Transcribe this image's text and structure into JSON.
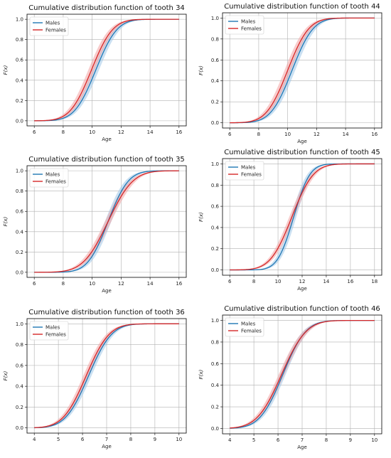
{
  "chart_data": [
    {
      "type": "line",
      "title": "Cumulative distribution function of tooth 34",
      "xlabel": "Age",
      "ylabel": "F(x)",
      "xlim": [
        6,
        16
      ],
      "ylim": [
        0,
        1
      ],
      "xticks": [
        "6",
        "8",
        "10",
        "12",
        "14",
        "16"
      ],
      "yticks": [
        "0.0",
        "0.2",
        "0.4",
        "0.6",
        "0.8",
        "1.0"
      ],
      "grid": true,
      "legend_position": "top-left",
      "series": [
        {
          "name": "Males",
          "color": "#1f77b4",
          "band_color": "#9ec7e8",
          "dist": "normal",
          "mu": 10.25,
          "sigma": 1.15,
          "band": 0.22
        },
        {
          "name": "Females",
          "color": "#d62728",
          "band_color": "#f2a3a3",
          "dist": "normal",
          "mu": 9.95,
          "sigma": 1.15,
          "band": 0.22
        }
      ]
    },
    {
      "type": "line",
      "title": "Cumulative distribution function of tooth 44",
      "xlabel": "Age",
      "ylabel": "F(x)",
      "xlim": [
        6,
        16
      ],
      "ylim": [
        0,
        1
      ],
      "xticks": [
        "6",
        "8",
        "10",
        "12",
        "14",
        "16"
      ],
      "yticks": [
        "0.0",
        "0.2",
        "0.4",
        "0.6",
        "0.8",
        "1.0"
      ],
      "grid": true,
      "legend_position": "top-left",
      "series": [
        {
          "name": "Males",
          "color": "#1f77b4",
          "band_color": "#9ec7e8",
          "dist": "normal",
          "mu": 10.3,
          "sigma": 1.15,
          "band": 0.22
        },
        {
          "name": "Females",
          "color": "#d62728",
          "band_color": "#f2a3a3",
          "dist": "normal",
          "mu": 10.0,
          "sigma": 1.15,
          "band": 0.22
        }
      ]
    },
    {
      "type": "line",
      "title": "Cumulative distribution function of tooth 35",
      "xlabel": "Age",
      "ylabel": "F(x)",
      "xlim": [
        6,
        16
      ],
      "ylim": [
        0,
        1
      ],
      "xticks": [
        "6",
        "8",
        "10",
        "12",
        "14",
        "16"
      ],
      "yticks": [
        "0.0",
        "0.2",
        "0.4",
        "0.6",
        "0.8",
        "1.0"
      ],
      "grid": true,
      "legend_position": "top-left",
      "series": [
        {
          "name": "Males",
          "color": "#1f77b4",
          "band_color": "#9ec7e8",
          "dist": "normal",
          "mu": 11.1,
          "sigma": 1.1,
          "band": 0.22
        },
        {
          "name": "Females",
          "color": "#d62728",
          "band_color": "#f2a3a3",
          "dist": "normal",
          "mu": 11.1,
          "sigma": 1.35,
          "band": 0.22
        }
      ]
    },
    {
      "type": "line",
      "title": "Cumulative distribution function of tooth 45",
      "xlabel": "Age",
      "ylabel": "F(x)",
      "xlim": [
        6,
        18
      ],
      "ylim": [
        0,
        1
      ],
      "xticks": [
        "6",
        "8",
        "10",
        "12",
        "14",
        "16",
        "18"
      ],
      "yticks": [
        "0.0",
        "0.2",
        "0.4",
        "0.6",
        "0.8",
        "1.0"
      ],
      "grid": true,
      "legend_position": "top-left",
      "series": [
        {
          "name": "Males",
          "color": "#1f77b4",
          "band_color": "#9ec7e8",
          "dist": "normal",
          "mu": 11.3,
          "sigma": 1.05,
          "band": 0.22
        },
        {
          "name": "Females",
          "color": "#d62728",
          "band_color": "#f2a3a3",
          "dist": "normal",
          "mu": 11.15,
          "sigma": 1.4,
          "band": 0.22
        }
      ]
    },
    {
      "type": "line",
      "title": "Cumulative distribution function of tooth 36",
      "xlabel": "Age",
      "ylabel": "F(x)",
      "xlim": [
        4,
        10
      ],
      "ylim": [
        0,
        1
      ],
      "xticks": [
        "4",
        "5",
        "6",
        "7",
        "8",
        "9",
        "10"
      ],
      "yticks": [
        "0.0",
        "0.2",
        "0.4",
        "0.6",
        "0.8",
        "1.0"
      ],
      "grid": true,
      "legend_position": "top-left",
      "series": [
        {
          "name": "Males",
          "color": "#1f77b4",
          "band_color": "#9ec7e8",
          "dist": "normal",
          "mu": 6.25,
          "sigma": 0.75,
          "band": 0.12
        },
        {
          "name": "Females",
          "color": "#d62728",
          "band_color": "#f2a3a3",
          "dist": "normal",
          "mu": 6.15,
          "sigma": 0.75,
          "band": 0.12
        }
      ]
    },
    {
      "type": "line",
      "title": "Cumulative distribution function of tooth 46",
      "xlabel": "Age",
      "ylabel": "F(x)",
      "xlim": [
        4,
        10
      ],
      "ylim": [
        0,
        1
      ],
      "xticks": [
        "4",
        "5",
        "6",
        "7",
        "8",
        "9",
        "10"
      ],
      "yticks": [
        "0.0",
        "0.2",
        "0.4",
        "0.6",
        "0.8",
        "1.0"
      ],
      "grid": true,
      "legend_position": "top-left",
      "series": [
        {
          "name": "Males",
          "color": "#1f77b4",
          "band_color": "#9ec7e8",
          "dist": "normal",
          "mu": 6.2,
          "sigma": 0.75,
          "band": 0.12
        },
        {
          "name": "Females",
          "color": "#d62728",
          "band_color": "#f2a3a3",
          "dist": "normal",
          "mu": 6.15,
          "sigma": 0.8,
          "band": 0.12
        }
      ]
    }
  ]
}
